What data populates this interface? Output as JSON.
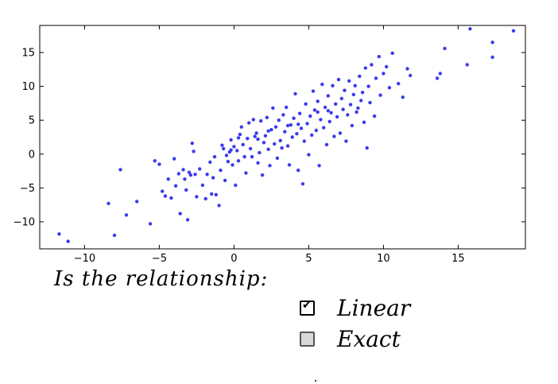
{
  "question": "Is the relationship:",
  "options": [
    {
      "label": "Linear",
      "checked": true
    },
    {
      "label": "Exact",
      "checked": false
    }
  ],
  "chart_data": {
    "type": "scatter",
    "title": "",
    "xlabel": "",
    "ylabel": "",
    "xlim": [
      -13,
      19.5
    ],
    "ylim": [
      -14,
      19
    ],
    "xticks": [
      -10,
      -5,
      0,
      5,
      10,
      15
    ],
    "yticks": [
      -10,
      -5,
      0,
      5,
      10,
      15
    ],
    "grid": false,
    "marker_color": "#3a3aef",
    "series": [
      {
        "points": [
          [
            -11.7,
            -11.8
          ],
          [
            -11.1,
            -12.9
          ],
          [
            -8.4,
            -7.3
          ],
          [
            -8.0,
            -12.0
          ],
          [
            -7.6,
            -2.3
          ],
          [
            -7.2,
            -9.0
          ],
          [
            -6.5,
            -7.0
          ],
          [
            -5.6,
            -10.3
          ],
          [
            -5.3,
            -1.0
          ],
          [
            -5.0,
            -1.5
          ],
          [
            -4.8,
            -5.5
          ],
          [
            -4.6,
            -6.2
          ],
          [
            -4.4,
            -3.7
          ],
          [
            -4.2,
            -6.5
          ],
          [
            -4.0,
            -0.7
          ],
          [
            -3.9,
            -4.7
          ],
          [
            -3.7,
            -2.9
          ],
          [
            -3.6,
            -8.8
          ],
          [
            -3.4,
            -2.3
          ],
          [
            -3.3,
            -3.7
          ],
          [
            -3.2,
            -5.3
          ],
          [
            -3.1,
            -9.7
          ],
          [
            -3.0,
            -2.7
          ],
          [
            -2.9,
            -3.1
          ],
          [
            -2.8,
            1.6
          ],
          [
            -2.7,
            0.4
          ],
          [
            -2.6,
            -3.0
          ],
          [
            -2.5,
            -6.3
          ],
          [
            -2.3,
            -2.2
          ],
          [
            -2.1,
            -4.6
          ],
          [
            -1.9,
            -6.6
          ],
          [
            -1.8,
            -3.0
          ],
          [
            -1.6,
            -1.2
          ],
          [
            -1.5,
            -5.9
          ],
          [
            -1.4,
            -3.5
          ],
          [
            -1.3,
            -0.4
          ],
          [
            -1.2,
            -6.0
          ],
          [
            -1.0,
            -7.6
          ],
          [
            -0.9,
            -2.4
          ],
          [
            -0.8,
            1.3
          ],
          [
            -0.7,
            0.8
          ],
          [
            -0.6,
            -3.9
          ],
          [
            -0.5,
            -0.2
          ],
          [
            -0.4,
            -1.1
          ],
          [
            -0.3,
            0.3
          ],
          [
            -0.2,
            2.1
          ],
          [
            -0.1,
            -1.6
          ],
          [
            0.0,
            1.1
          ],
          [
            0.1,
            -4.6
          ],
          [
            0.2,
            0.5
          ],
          [
            0.3,
            -1.0
          ],
          [
            0.4,
            2.9
          ],
          [
            0.5,
            4.0
          ],
          [
            0.6,
            1.4
          ],
          [
            0.7,
            -0.4
          ],
          [
            0.8,
            -2.8
          ],
          [
            0.9,
            2.3
          ],
          [
            1.0,
            4.6
          ],
          [
            1.1,
            0.8
          ],
          [
            1.2,
            -0.4
          ],
          [
            1.3,
            5.1
          ],
          [
            1.4,
            2.6
          ],
          [
            1.5,
            3.1
          ],
          [
            1.6,
            -1.3
          ],
          [
            1.7,
            0.2
          ],
          [
            1.8,
            4.9
          ],
          [
            1.9,
            -3.1
          ],
          [
            2.0,
            1.7
          ],
          [
            2.1,
            2.7
          ],
          [
            2.2,
            5.4
          ],
          [
            2.3,
            0.7
          ],
          [
            2.4,
            -1.7
          ],
          [
            2.5,
            3.6
          ],
          [
            2.6,
            6.8
          ],
          [
            2.7,
            1.5
          ],
          [
            2.8,
            4.0
          ],
          [
            2.9,
            -0.6
          ],
          [
            3.0,
            5.0
          ],
          [
            3.1,
            2.0
          ],
          [
            3.2,
            0.9
          ],
          [
            3.3,
            5.8
          ],
          [
            3.4,
            3.3
          ],
          [
            3.5,
            6.9
          ],
          [
            3.6,
            1.2
          ],
          [
            3.7,
            -1.6
          ],
          [
            3.8,
            4.3
          ],
          [
            3.9,
            2.5
          ],
          [
            4.0,
            5.3
          ],
          [
            4.1,
            8.9
          ],
          [
            4.2,
            3.0
          ],
          [
            4.3,
            -2.4
          ],
          [
            4.4,
            6.0
          ],
          [
            4.5,
            3.8
          ],
          [
            4.6,
            -4.4
          ],
          [
            4.7,
            1.9
          ],
          [
            4.8,
            7.4
          ],
          [
            4.9,
            4.5
          ],
          [
            5.0,
            -0.1
          ],
          [
            5.1,
            5.6
          ],
          [
            5.2,
            2.8
          ],
          [
            5.3,
            9.3
          ],
          [
            5.4,
            6.5
          ],
          [
            5.5,
            3.5
          ],
          [
            5.6,
            7.8
          ],
          [
            5.7,
            -1.7
          ],
          [
            5.8,
            5.1
          ],
          [
            5.9,
            10.3
          ],
          [
            6.0,
            3.9
          ],
          [
            6.1,
            6.9
          ],
          [
            6.2,
            1.4
          ],
          [
            6.3,
            8.6
          ],
          [
            6.4,
            4.8
          ],
          [
            6.5,
            6.1
          ],
          [
            6.6,
            10.1
          ],
          [
            6.7,
            2.6
          ],
          [
            6.8,
            7.4
          ],
          [
            6.9,
            5.5
          ],
          [
            7.0,
            11.0
          ],
          [
            7.1,
            3.1
          ],
          [
            7.2,
            8.2
          ],
          [
            7.3,
            6.6
          ],
          [
            7.4,
            9.4
          ],
          [
            7.5,
            1.9
          ],
          [
            7.6,
            5.8
          ],
          [
            7.7,
            10.8
          ],
          [
            7.8,
            7.3
          ],
          [
            7.9,
            4.2
          ],
          [
            8.0,
            8.8
          ],
          [
            8.1,
            10.1
          ],
          [
            8.2,
            6.2
          ],
          [
            8.4,
            11.5
          ],
          [
            8.5,
            7.9
          ],
          [
            8.6,
            9.1
          ],
          [
            8.7,
            4.7
          ],
          [
            8.8,
            12.7
          ],
          [
            8.9,
            0.9
          ],
          [
            9.0,
            10.0
          ],
          [
            9.1,
            7.6
          ],
          [
            9.2,
            13.2
          ],
          [
            9.4,
            5.6
          ],
          [
            9.5,
            11.2
          ],
          [
            9.7,
            14.4
          ],
          [
            9.8,
            8.7
          ],
          [
            10.0,
            11.9
          ],
          [
            10.2,
            12.9
          ],
          [
            10.4,
            9.8
          ],
          [
            10.6,
            14.9
          ],
          [
            11.0,
            10.4
          ],
          [
            11.3,
            8.4
          ],
          [
            11.6,
            12.6
          ],
          [
            11.8,
            11.6
          ],
          [
            13.6,
            11.2
          ],
          [
            13.8,
            11.9
          ],
          [
            14.1,
            15.6
          ],
          [
            15.6,
            13.2
          ],
          [
            15.8,
            18.5
          ],
          [
            17.3,
            16.5
          ],
          [
            17.3,
            14.3
          ],
          [
            18.7,
            18.2
          ],
          [
            0.3,
            2.4
          ],
          [
            2.3,
            3.4
          ],
          [
            4.3,
            4.4
          ],
          [
            6.3,
            6.4
          ],
          [
            8.3,
            6.8
          ],
          [
            3.6,
            4.2
          ],
          [
            5.6,
            6.2
          ],
          [
            1.6,
            2.2
          ],
          [
            -0.2,
            0.6
          ]
        ]
      }
    ]
  }
}
